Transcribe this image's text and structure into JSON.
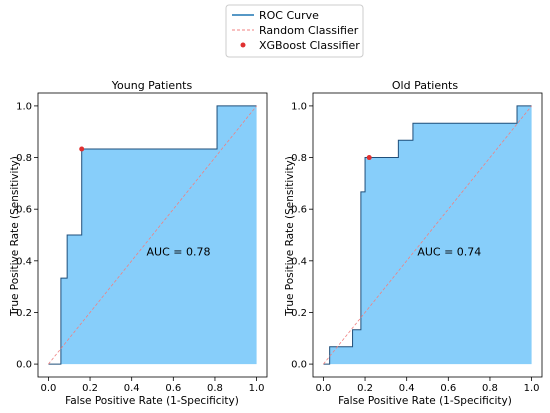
{
  "legend": {
    "placement": "top-center",
    "entries": [
      {
        "label": "ROC Curve",
        "kind": "line",
        "color": "#1f77b4"
      },
      {
        "label": "Random Classifier",
        "kind": "dashed-line",
        "color": "#f08080"
      },
      {
        "label": "XGBoost Classifier",
        "kind": "point",
        "color": "#e03030"
      }
    ]
  },
  "colors": {
    "fill": "#87cefa",
    "roc_line": "#1f77b4",
    "random_line": "#f08080",
    "point": "#e03030"
  },
  "chart_data": [
    {
      "type": "line",
      "title": "Young Patients",
      "xlabel": "False Positive Rate (1-Specificity)",
      "ylabel": "True Positive Rate (Sensitivity)",
      "xlim": [
        -0.05,
        1.05
      ],
      "ylim": [
        -0.05,
        1.05
      ],
      "xticks": [
        "0.0",
        "0.2",
        "0.4",
        "0.6",
        "0.8",
        "1.0"
      ],
      "yticks": [
        "0.0",
        "0.2",
        "0.4",
        "0.6",
        "0.8",
        "1.0"
      ],
      "grid": false,
      "series": [
        {
          "name": "ROC Curve",
          "style": "step-filled",
          "x": [
            0,
            0.06,
            0.06,
            0.09,
            0.09,
            0.16,
            0.16,
            0.81,
            0.81,
            1.0,
            1.0
          ],
          "y": [
            0,
            0,
            0.333,
            0.333,
            0.5,
            0.5,
            0.833,
            0.833,
            1.0,
            1.0,
            1.0
          ]
        },
        {
          "name": "Random Classifier",
          "style": "dashed",
          "x": [
            0,
            1
          ],
          "y": [
            0,
            1
          ]
        },
        {
          "name": "XGBoost Classifier",
          "style": "point",
          "x": [
            0.16
          ],
          "y": [
            0.833
          ]
        }
      ],
      "annotation": "AUC = 0.78"
    },
    {
      "type": "line",
      "title": "Old Patients",
      "xlabel": "False Positive Rate (1-Specificity)",
      "ylabel": "True Positive Rate (Sensitivity)",
      "xlim": [
        -0.05,
        1.05
      ],
      "ylim": [
        -0.05,
        1.05
      ],
      "xticks": [
        "0.0",
        "0.2",
        "0.4",
        "0.6",
        "0.8",
        "1.0"
      ],
      "yticks": [
        "0.0",
        "0.2",
        "0.4",
        "0.6",
        "0.8",
        "1.0"
      ],
      "grid": false,
      "series": [
        {
          "name": "ROC Curve",
          "style": "step-filled",
          "x": [
            0,
            0.03,
            0.03,
            0.14,
            0.14,
            0.18,
            0.18,
            0.2,
            0.2,
            0.22,
            0.22,
            0.36,
            0.36,
            0.43,
            0.43,
            0.93,
            0.93,
            1.0
          ],
          "y": [
            0,
            0,
            0.067,
            0.067,
            0.133,
            0.133,
            0.667,
            0.667,
            0.8,
            0.8,
            0.8,
            0.8,
            0.867,
            0.867,
            0.933,
            0.933,
            1.0,
            1.0
          ]
        },
        {
          "name": "Random Classifier",
          "style": "dashed",
          "x": [
            0,
            1
          ],
          "y": [
            0,
            1
          ]
        },
        {
          "name": "XGBoost Classifier",
          "style": "point",
          "x": [
            0.22
          ],
          "y": [
            0.8
          ]
        }
      ],
      "annotation": "AUC = 0.74"
    }
  ]
}
